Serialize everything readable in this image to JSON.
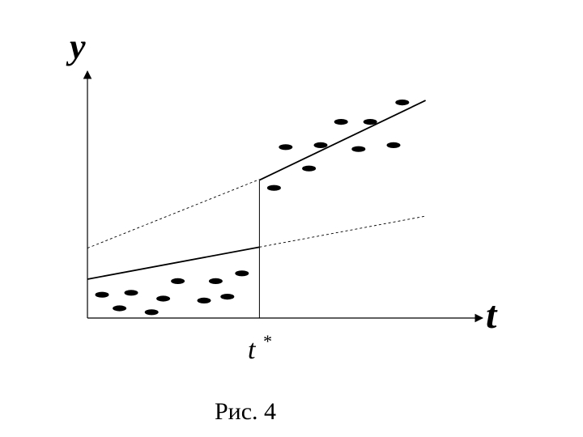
{
  "figure": {
    "y_axis_label": "y",
    "x_axis_label": "t",
    "breakpoint_label": "t",
    "breakpoint_superscript": "*",
    "caption": "Рис. 4"
  },
  "colors": {
    "ink": "#000000",
    "background": "#ffffff"
  },
  "points": {
    "before_break": [
      [
        0.5,
        1.2
      ],
      [
        1.1,
        0.5
      ],
      [
        1.5,
        1.3
      ],
      [
        2.2,
        0.3
      ],
      [
        2.6,
        1.0
      ],
      [
        3.1,
        1.9
      ],
      [
        4.0,
        0.9
      ],
      [
        4.4,
        1.9
      ],
      [
        4.8,
        1.1
      ],
      [
        5.3,
        2.3
      ]
    ],
    "after_break": [
      [
        6.4,
        6.7
      ],
      [
        6.8,
        8.8
      ],
      [
        7.6,
        7.7
      ],
      [
        8.0,
        8.9
      ],
      [
        8.7,
        10.1
      ],
      [
        9.3,
        8.7
      ],
      [
        9.7,
        10.1
      ],
      [
        10.5,
        8.9
      ],
      [
        10.8,
        11.1
      ]
    ]
  },
  "lines": {
    "regime1": {
      "x0": 0,
      "y0": 2.0,
      "slope": 0.28
    },
    "regime2": {
      "x0": 5.9,
      "y0": 7.1,
      "slope": 0.72
    },
    "extension_before": {
      "x0": 0,
      "y0": 3.6,
      "slope": 0.6
    },
    "extension_after": {
      "x0": 0,
      "y0": 2.0,
      "slope": 0.28
    }
  },
  "breakpoint_t": 5.9
}
